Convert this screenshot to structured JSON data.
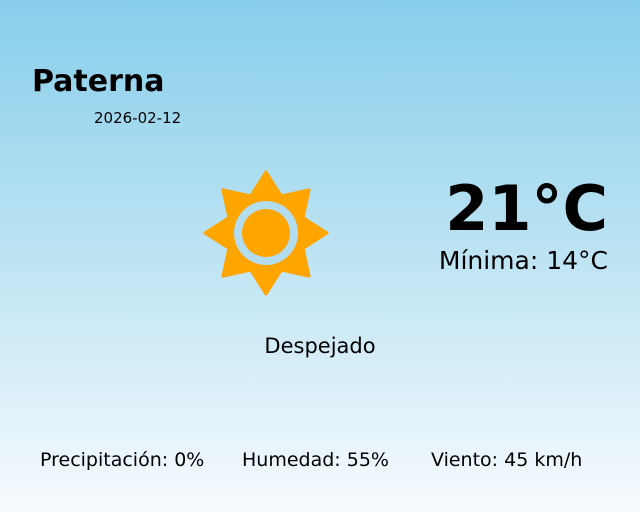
{
  "location": {
    "city": "Paterna",
    "date": "2026-02-12"
  },
  "current": {
    "temperature": "21°C",
    "minimum": "Mínima: 14°C",
    "condition": "Despejado",
    "icon": "sun-icon"
  },
  "stats": {
    "precipitation": "Precipitación: 0%",
    "humidity": "Humedad: 55%",
    "wind": "Viento: 45 km/h"
  },
  "colors": {
    "sun": "#ffa500",
    "sky_top": "#87ceeb",
    "sky_bottom": "#f7fbfe"
  }
}
